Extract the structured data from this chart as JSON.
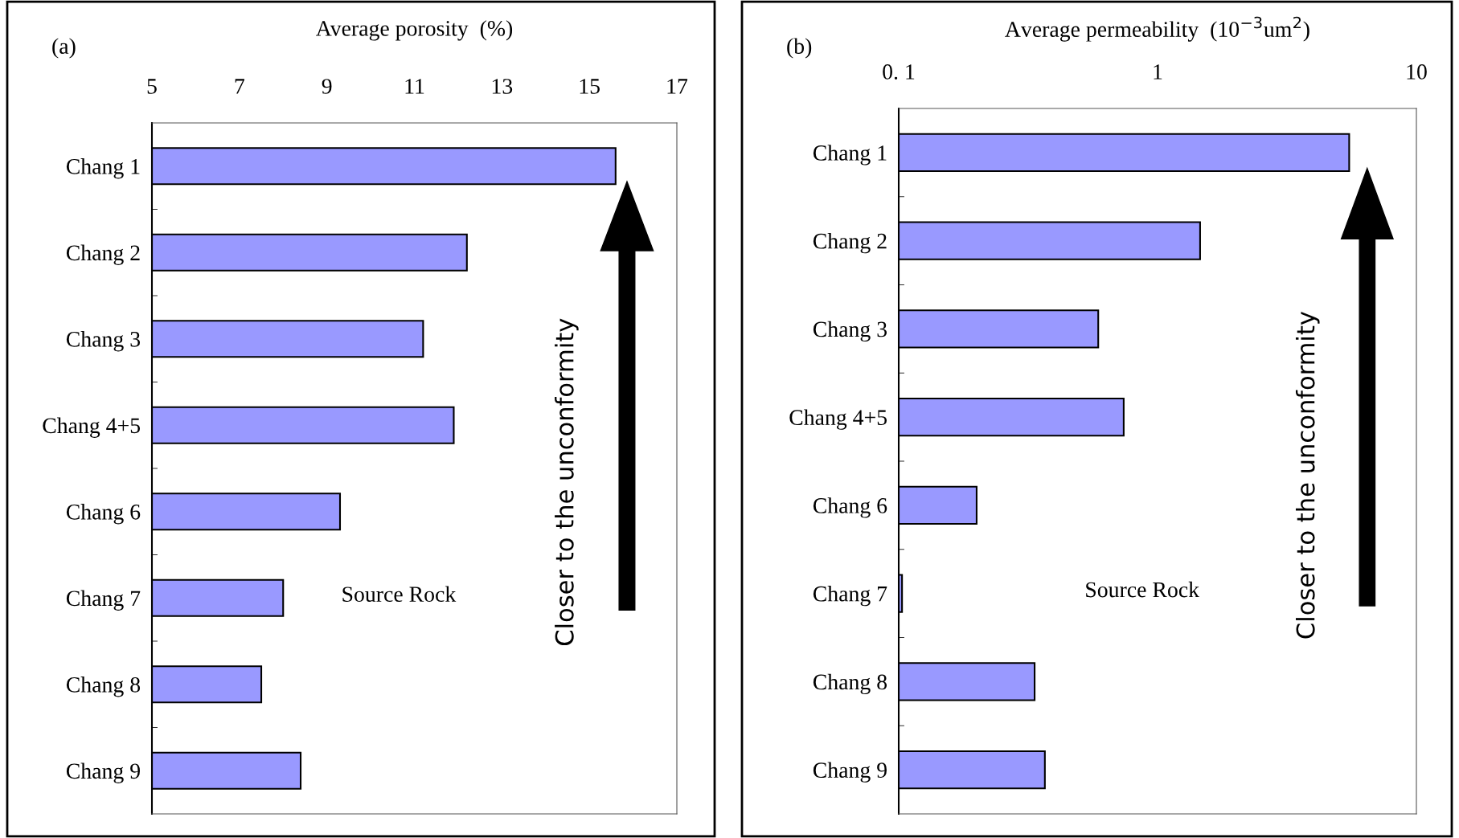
{
  "chart_data": [
    {
      "type": "bar",
      "orientation": "horizontal",
      "xlabel": "Average porosity  (%)",
      "categories": [
        "Chang 1",
        "Chang 2",
        "Chang 3",
        "Chang 4+5",
        "Chang 6",
        "Chang 7",
        "Chang 8",
        "Chang 9"
      ],
      "values": [
        15.6,
        12.2,
        11.2,
        11.9,
        9.3,
        8.0,
        7.5,
        8.4
      ],
      "color": "#9999ff",
      "xlim": [
        5,
        17
      ],
      "xticks": [
        5,
        7,
        9,
        11,
        13,
        15,
        17
      ],
      "grid": false,
      "legend": false,
      "annotations": [
        "(a)",
        "Source Rock",
        "Closer to the unconformity"
      ]
    },
    {
      "type": "bar",
      "orientation": "horizontal",
      "xlabel": "Average permeability  (10$^{−3}$um$^{2}$)",
      "categories": [
        "Chang 1",
        "Chang 2",
        "Chang 3",
        "Chang 4+5",
        "Chang 6",
        "Chang 7",
        "Chang 8",
        "Chang 9"
      ],
      "values": [
        5.5,
        1.46,
        0.59,
        0.74,
        0.2,
        0.103,
        0.335,
        0.367
      ],
      "color": "#9999ff",
      "log": "x",
      "xlim": [
        0.1,
        10
      ],
      "xticks": [
        {
          "value": 0.1,
          "label": "0. 1"
        },
        1,
        10
      ],
      "grid": false,
      "legend": false,
      "annotations": [
        "(b)",
        "Source Rock",
        "Closer to the unconformity"
      ]
    }
  ]
}
